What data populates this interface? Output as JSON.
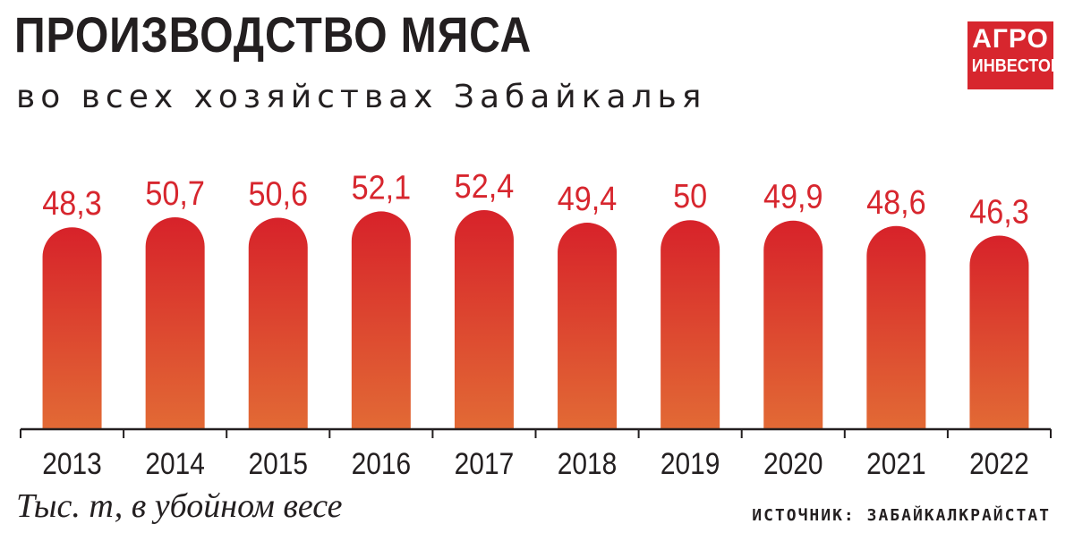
{
  "header": {
    "title": "ПРОИЗВОДСТВО МЯСА",
    "subtitle": "во всех хозяйствах Забайкалья"
  },
  "logo": {
    "line1": "АГРО",
    "line2": "ИНВЕСТОР",
    "color": "#d7262e"
  },
  "footer": {
    "unit_note": "Тыс. т, в убойном весе",
    "source": "ИСТОЧНИК: ЗАБАЙКАЛКРАЙСТАТ"
  },
  "colors": {
    "bar_top": "#d7222a",
    "bar_bottom": "#e26a35",
    "label": "#d7262e",
    "axis": "#231f20"
  },
  "chart_data": {
    "type": "bar",
    "categories": [
      "2013",
      "2014",
      "2015",
      "2016",
      "2017",
      "2018",
      "2019",
      "2020",
      "2021",
      "2022"
    ],
    "values": [
      48.3,
      50.7,
      50.6,
      52.1,
      52.4,
      49.4,
      50,
      49.9,
      48.6,
      46.3
    ],
    "value_labels": [
      "48,3",
      "50,7",
      "50,6",
      "52,1",
      "52,4",
      "49,4",
      "50",
      "49,9",
      "48,6",
      "46,3"
    ],
    "title": "ПРОИЗВОДСТВО МЯСА",
    "subtitle": "во всех хозяйствах Забайкалья",
    "xlabel": "",
    "ylabel": "Тыс. т, в убойном весе",
    "grid": false,
    "legend": "none"
  }
}
